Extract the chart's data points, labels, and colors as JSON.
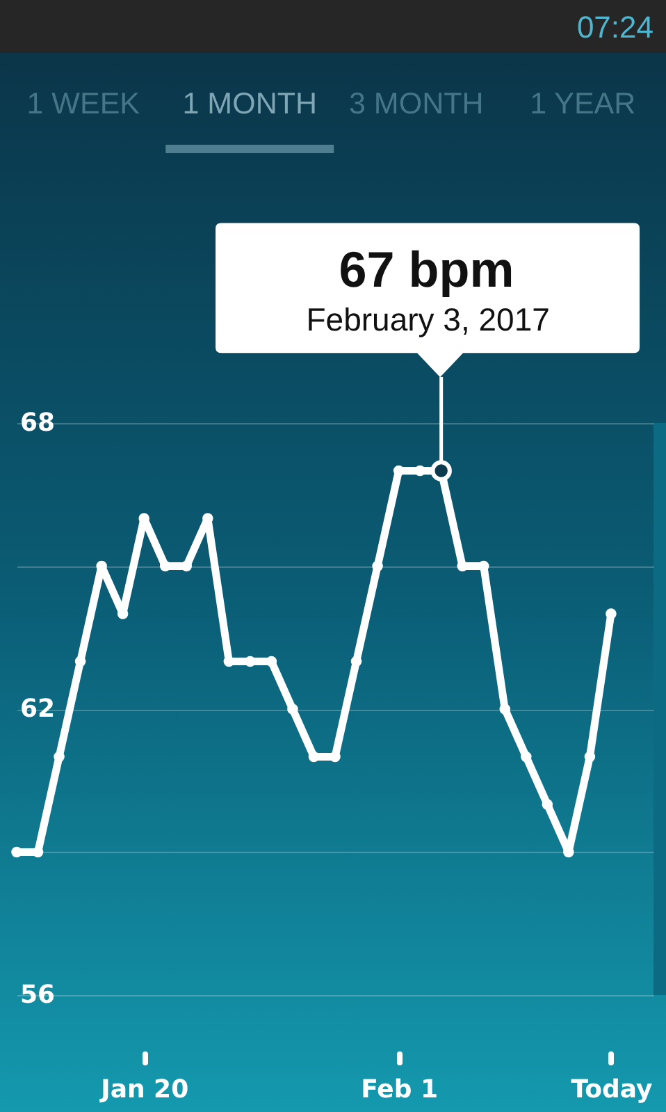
{
  "chart_data": {
    "type": "line",
    "x": [
      "2017-01-14",
      "2017-01-15",
      "2017-01-16",
      "2017-01-17",
      "2017-01-18",
      "2017-01-19",
      "2017-01-20",
      "2017-01-21",
      "2017-01-22",
      "2017-01-23",
      "2017-01-24",
      "2017-01-25",
      "2017-01-26",
      "2017-01-27",
      "2017-01-28",
      "2017-01-29",
      "2017-01-30",
      "2017-01-31",
      "2017-02-01",
      "2017-02-02",
      "2017-02-03",
      "2017-02-04",
      "2017-02-05",
      "2017-02-06",
      "2017-02-07",
      "2017-02-08",
      "2017-02-09",
      "2017-02-10",
      "2017-02-11"
    ],
    "values": [
      59,
      59,
      61,
      63,
      65,
      64,
      66,
      65,
      65,
      66,
      63,
      63,
      63,
      62,
      61,
      61,
      63,
      65,
      67,
      67,
      67,
      65,
      65,
      62,
      61,
      60,
      59,
      61,
      64
    ],
    "color": "#ffffff",
    "xlim": [
      "2017-01-14",
      "2017-02-13"
    ],
    "xticks": [
      {
        "value": "2017-01-20",
        "label": "Jan 20"
      },
      {
        "value": "2017-02-01",
        "label": "Feb 1"
      },
      {
        "value": "2017-02-11",
        "label": "Today"
      }
    ],
    "ylim": [
      56,
      68
    ],
    "yticks": [
      56,
      {
        "value": 59,
        "label": null
      },
      62,
      {
        "value": 65,
        "label": null
      },
      68
    ],
    "grid": "y",
    "marker": "circle",
    "line_style": "solid",
    "annotations": [
      "07:24",
      "1 WEEK",
      "1 MONTH",
      "3 MONTH",
      "1 YEAR",
      "67 bpm",
      {
        "text": "February 3, 2017",
        "x": "2017-02-03",
        "y": 67
      }
    ]
  }
}
